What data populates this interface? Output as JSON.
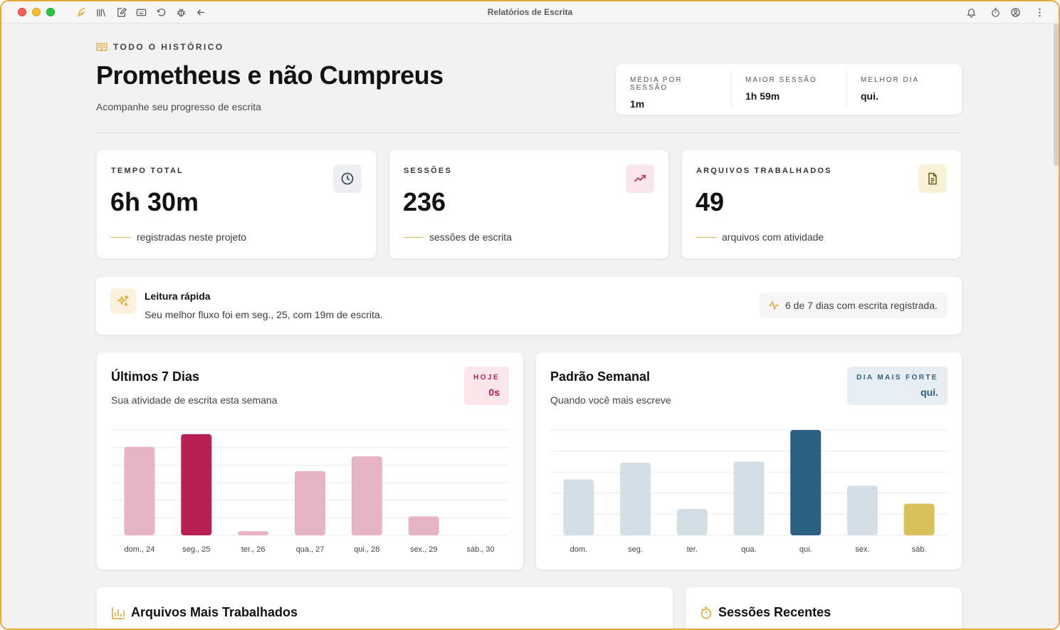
{
  "window": {
    "title": "Relatórios de Escrita"
  },
  "toolbar": {
    "icons": [
      "feather-icon",
      "library-icon",
      "edit-icon",
      "keyboard-icon",
      "undo-icon",
      "bug-icon",
      "back-arrow-icon"
    ],
    "right_icons": [
      "bell-icon",
      "timer-icon",
      "account-icon",
      "more-icon"
    ]
  },
  "header": {
    "eyebrow": "TODO O HISTÓRICO",
    "title": "Prometheus e não Cumpreus",
    "subtitle": "Acompanhe seu progresso de escrita"
  },
  "mini_stats": [
    {
      "label": "MÉDIA POR SESSÃO",
      "value": "1m"
    },
    {
      "label": "MAIOR SESSÃO",
      "value": "1h 59m"
    },
    {
      "label": "MELHOR DIA",
      "value": "qui."
    }
  ],
  "stats": [
    {
      "label": "TEMPO TOTAL",
      "value": "6h 30m",
      "foot": "registradas neste projeto",
      "icon": "clock-icon",
      "icon_bg": "#eceef1",
      "icon_color": "#2d3b4a"
    },
    {
      "label": "SESSÕES",
      "value": "236",
      "foot": "sessões de escrita",
      "icon": "trending-up-icon",
      "icon_bg": "#fbe6ec",
      "icon_color": "#c2255c"
    },
    {
      "label": "ARQUIVOS TRABALHADOS",
      "value": "49",
      "foot": "arquivos com atividade",
      "icon": "file-icon",
      "icon_bg": "#f8f1d8",
      "icon_color": "#6b5a1e"
    }
  ],
  "quick": {
    "title": "Leitura rápida",
    "text": "Seu melhor fluxo foi em seg., 25, com 19m de escrita.",
    "pill": "6 de 7 dias com escrita registrada."
  },
  "last7": {
    "title": "Últimos 7 Dias",
    "subtitle": "Sua atividade de escrita esta semana",
    "badge_label": "HOJE",
    "badge_value": "0s"
  },
  "weekly": {
    "title": "Padrão Semanal",
    "subtitle": "Quando você mais escreve",
    "badge_label": "DIA MAIS FORTE",
    "badge_value": "qui."
  },
  "bottom": {
    "files_title": "Arquivos Mais Trabalhados",
    "sessions_title": "Sessões Recentes"
  },
  "chart_data": [
    {
      "type": "bar",
      "categories": [
        "dom., 24",
        "seg., 25",
        "ter., 26",
        "qua., 27",
        "qui., 28",
        "sex., 29",
        "sáb., 30"
      ],
      "values": [
        0.84,
        0.96,
        0.04,
        0.61,
        0.75,
        0.18,
        0
      ],
      "highlight_index": 1,
      "color": "#e6b4c4",
      "highlight_color": "#b81f52",
      "ylim": [
        0,
        1
      ]
    },
    {
      "type": "bar",
      "categories": [
        "dom.",
        "seg.",
        "ter.",
        "qua.",
        "qui.",
        "sex.",
        "sáb."
      ],
      "values": [
        0.53,
        0.69,
        0.25,
        0.7,
        1.0,
        0.47,
        0.3
      ],
      "highlight_index": 4,
      "color": "#d4dee5",
      "highlight_color": "#2c6183",
      "special_index": 6,
      "special_color": "#d8c05a",
      "ylim": [
        0,
        1
      ]
    }
  ]
}
